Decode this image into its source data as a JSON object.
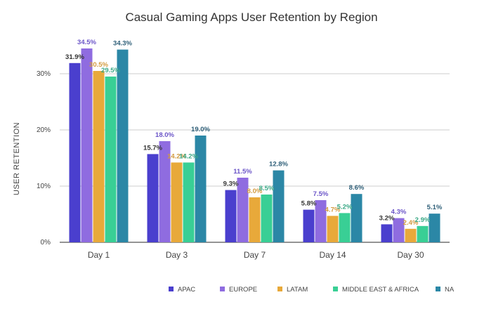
{
  "chart_data": {
    "type": "bar",
    "title": "Casual Gaming Apps User Retention by Region",
    "xlabel": "",
    "ylabel": "USER RETENTION",
    "categories": [
      "Day 1",
      "Day 3",
      "Day 7",
      "Day 14",
      "Day 30"
    ],
    "ylim": [
      0,
      40
    ],
    "yticks": [
      {
        "value": 0,
        "label": "0%"
      },
      {
        "value": 10,
        "label": "10%"
      },
      {
        "value": 20,
        "label": "20%"
      },
      {
        "value": 30,
        "label": "30%"
      }
    ],
    "grid": true,
    "legend_position": "bottom",
    "series": [
      {
        "name": "APAC",
        "color": "#4a3fce",
        "label_color": "#333333",
        "values": [
          31.9,
          15.7,
          9.3,
          5.8,
          3.2
        ],
        "labels": [
          "31.9%",
          "15.7%",
          "9.3%",
          "5.8%",
          "3.2%"
        ]
      },
      {
        "name": "EUROPE",
        "color": "#8f6ce0",
        "label_color": "#6b55c8",
        "values": [
          34.5,
          18.0,
          11.5,
          7.5,
          4.3
        ],
        "labels": [
          "34.5%",
          "18.0%",
          "11.5%",
          "7.5%",
          "4.3%"
        ]
      },
      {
        "name": "LATAM",
        "color": "#e8a93a",
        "label_color": "#d39a3f",
        "values": [
          30.5,
          14.2,
          8.0,
          4.7,
          2.4
        ],
        "labels": [
          "30.5%",
          "14.2%",
          "8.0%",
          "4.7%",
          "2.4%"
        ]
      },
      {
        "name": "MIDDLE EAST & AFRICA",
        "color": "#39cf95",
        "label_color": "#3aa886",
        "values": [
          29.5,
          14.2,
          8.5,
          5.2,
          2.9
        ],
        "labels": [
          "29.5%",
          "14.2%",
          "8.5%",
          "5.2%",
          "2.9%"
        ]
      },
      {
        "name": "NA",
        "color": "#2b87a6",
        "label_color": "#2f5f78",
        "values": [
          34.3,
          19.0,
          12.8,
          8.6,
          5.1
        ],
        "labels": [
          "34.3%",
          "19.0%",
          "12.8%",
          "8.6%",
          "5.1%"
        ]
      }
    ]
  }
}
